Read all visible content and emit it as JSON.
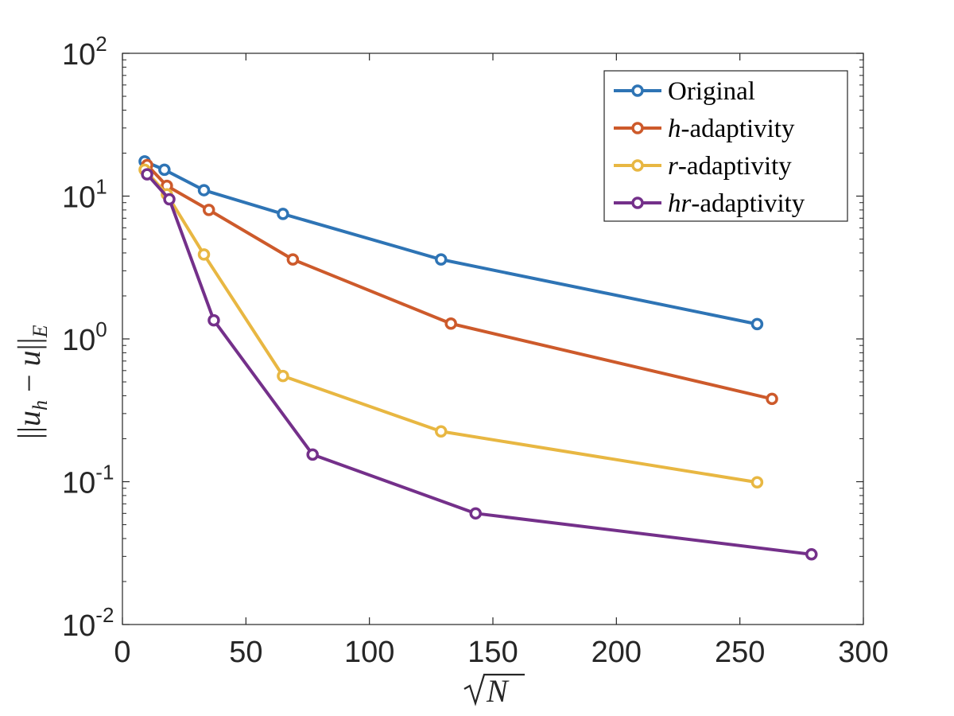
{
  "chart_data": {
    "type": "line",
    "y_scale": "log",
    "xlabel": "√N",
    "ylabel": "||u_h − u||_E",
    "xlim": [
      0,
      300
    ],
    "ylim": [
      0.01,
      100
    ],
    "x_ticks": [
      0,
      50,
      100,
      150,
      200,
      250,
      300
    ],
    "x_tick_labels": [
      "0",
      "50",
      "100",
      "150",
      "200",
      "250",
      "300"
    ],
    "y_ticks": [
      {
        "value": 100,
        "base": "10",
        "exp": "2"
      },
      {
        "value": 10,
        "base": "10",
        "exp": "1"
      },
      {
        "value": 1,
        "base": "10",
        "exp": "0"
      },
      {
        "value": 0.1,
        "base": "10",
        "exp": "-1"
      },
      {
        "value": 0.01,
        "base": "10",
        "exp": "-2"
      }
    ],
    "legend_position": "top-right",
    "series": [
      {
        "name": "Original",
        "prefix": "",
        "suffix": "Original",
        "color": "#2e74b5",
        "x": [
          9,
          17,
          33,
          65,
          129,
          257
        ],
        "y": [
          17.5,
          15.3,
          11.0,
          7.5,
          3.6,
          1.27
        ]
      },
      {
        "name": "h-adaptivity",
        "prefix": "h",
        "suffix": "-adaptivity",
        "color": "#cd5a2b",
        "x": [
          10,
          18,
          35,
          69,
          133,
          263
        ],
        "y": [
          16.5,
          11.8,
          8.0,
          3.6,
          1.28,
          0.38
        ]
      },
      {
        "name": "r-adaptivity",
        "prefix": "r",
        "suffix": "-adaptivity",
        "color": "#e8b742",
        "x": [
          9,
          18,
          33,
          65,
          129,
          257
        ],
        "y": [
          15.3,
          10.3,
          3.9,
          0.55,
          0.225,
          0.099
        ]
      },
      {
        "name": "hr-adaptivity",
        "prefix": "hr",
        "suffix": "-adaptivity",
        "color": "#74308a",
        "x": [
          10,
          19,
          37,
          77,
          143,
          279
        ],
        "y": [
          14.2,
          9.5,
          1.35,
          0.155,
          0.06,
          0.031
        ]
      }
    ]
  }
}
